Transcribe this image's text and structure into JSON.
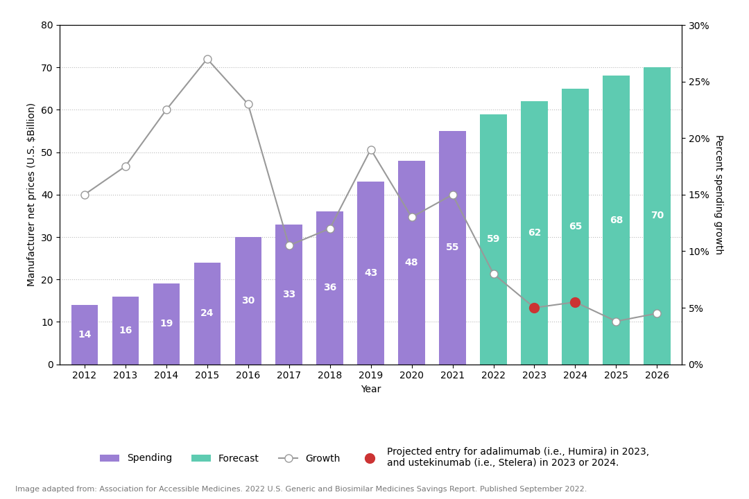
{
  "chart_data": {
    "type": "bar",
    "categories": [
      "2012",
      "2013",
      "2014",
      "2015",
      "2016",
      "2017",
      "2018",
      "2019",
      "2020",
      "2021",
      "2022",
      "2023",
      "2024",
      "2025",
      "2026"
    ],
    "series": [
      {
        "name": "Spending",
        "type": "bar",
        "color": "#9b7fd4",
        "values": [
          14,
          16,
          19,
          24,
          30,
          33,
          36,
          43,
          48,
          55,
          null,
          null,
          null,
          null,
          null
        ]
      },
      {
        "name": "Forecast",
        "type": "bar",
        "color": "#5ecbb1",
        "values": [
          null,
          null,
          null,
          null,
          null,
          null,
          null,
          null,
          null,
          null,
          59,
          62,
          65,
          68,
          70
        ]
      },
      {
        "name": "Growth",
        "type": "line",
        "axis": "y2",
        "color": "#999999",
        "marker": "o",
        "line_style": "solid",
        "values": [
          15,
          17.5,
          22.5,
          27,
          23,
          10.5,
          12,
          19,
          13,
          15,
          8,
          5,
          5.5,
          3.8,
          4.5
        ]
      },
      {
        "name": "Projected entry for adalimumab (i.e., Humira) in 2023,\nand ustekinumab (i.e., Stelera) in 2023 or 2024.",
        "type": "scatter",
        "axis": "y2",
        "color": "#cc3333",
        "marker": "o",
        "values": [
          null,
          null,
          null,
          null,
          null,
          null,
          null,
          null,
          null,
          null,
          null,
          5,
          5.5,
          null,
          null
        ]
      }
    ],
    "xlabel": "Year",
    "ylabel": "Manufacturer net prices (U.S. $Billion)",
    "y2label": "Percent spending growth",
    "ylim": [
      0,
      80
    ],
    "yticks": [
      0,
      10,
      20,
      30,
      40,
      50,
      60,
      70,
      80
    ],
    "y2lim": [
      0,
      30
    ],
    "y2ticks": [
      {
        "value": 0,
        "label": "0%"
      },
      {
        "value": 5,
        "label": "5%"
      },
      {
        "value": 10,
        "label": "10%"
      },
      {
        "value": 15,
        "label": "15%"
      },
      {
        "value": 20,
        "label": "20%"
      },
      {
        "value": 25,
        "label": "25%"
      },
      {
        "value": 30,
        "label": "30%"
      }
    ],
    "grid": true,
    "data_labels": true,
    "legend": "lower center",
    "footnote": "Image adapted from: Association for Accessible Medicines. 2022 U.S. Generic and Biosimilar Medicines Savings Report. Published September 2022."
  }
}
